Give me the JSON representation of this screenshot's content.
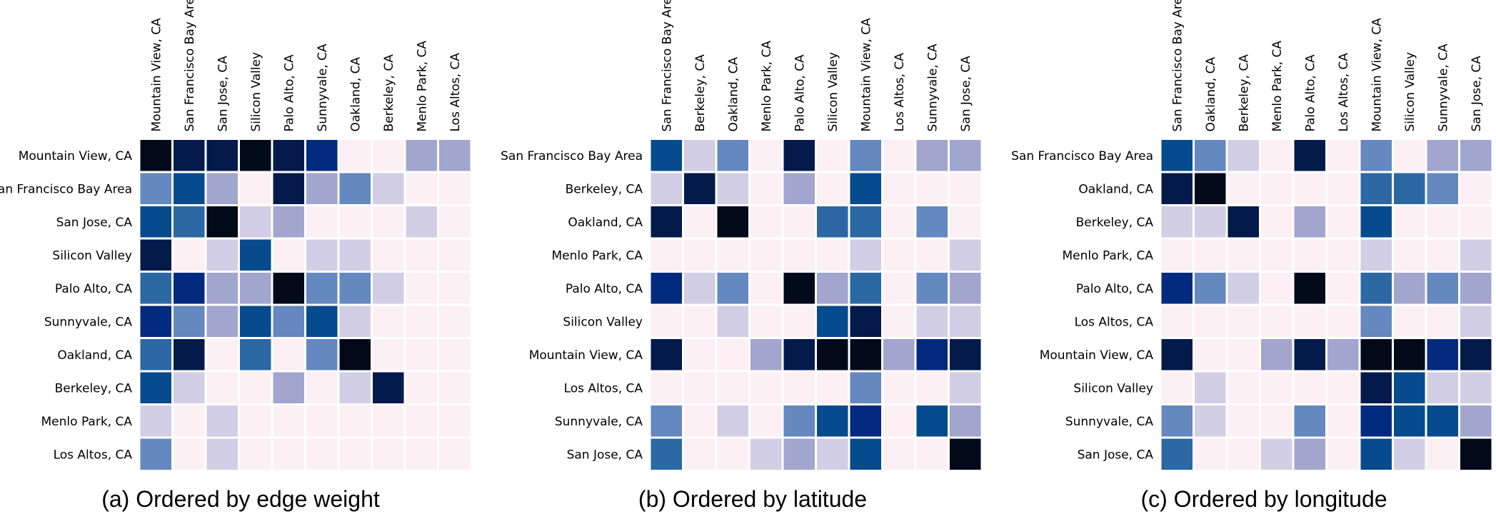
{
  "palette": [
    "#fcf0f5",
    "#d2cee6",
    "#a2a5ce",
    "#6488bf",
    "#2b68a4",
    "#054b8d",
    "#022a7e",
    "#041a4b",
    "#020a1a"
  ],
  "chart_data": [
    {
      "type": "heatmap",
      "caption": "(a)  Ordered by edge weight",
      "title": "",
      "xlabel": "",
      "ylabel": "",
      "x_labels": [
        "Mountain View, CA",
        "San Francisco Bay Area",
        "San Jose, CA",
        "Silicon Valley",
        "Palo Alto, CA",
        "Sunnyvale, CA",
        "Oakland, CA",
        "Berkeley, CA",
        "Menlo Park, CA",
        "Los Altos, CA"
      ],
      "y_labels": [
        "Mountain View, CA",
        "San Francisco Bay Area",
        "San Jose, CA",
        "Silicon Valley",
        "Palo Alto, CA",
        "Sunnyvale, CA",
        "Oakland, CA",
        "Berkeley, CA",
        "Menlo Park, CA",
        "Los Altos, CA"
      ],
      "values": [
        [
          8,
          7,
          7,
          8,
          7,
          6,
          0,
          0,
          2,
          2
        ],
        [
          3,
          5,
          2,
          0,
          7,
          2,
          3,
          1,
          0,
          0
        ],
        [
          5,
          4,
          8,
          1,
          2,
          0,
          0,
          0,
          1,
          0
        ],
        [
          7,
          0,
          1,
          5,
          0,
          1,
          1,
          0,
          0,
          0
        ],
        [
          4,
          6,
          2,
          2,
          8,
          3,
          3,
          1,
          0,
          0
        ],
        [
          6,
          3,
          2,
          5,
          3,
          5,
          1,
          0,
          0,
          0
        ],
        [
          4,
          7,
          0,
          4,
          0,
          3,
          8,
          0,
          0,
          0
        ],
        [
          5,
          1,
          0,
          0,
          2,
          0,
          1,
          7,
          0,
          0
        ],
        [
          1,
          0,
          1,
          0,
          0,
          0,
          0,
          0,
          0,
          0
        ],
        [
          3,
          0,
          1,
          0,
          0,
          0,
          0,
          0,
          0,
          0
        ]
      ]
    },
    {
      "type": "heatmap",
      "caption": "(b)  Ordered by latitude",
      "title": "",
      "xlabel": "",
      "ylabel": "",
      "x_labels": [
        "San Francisco Bay Area",
        "Berkeley, CA",
        "Oakland, CA",
        "Menlo Park, CA",
        "Palo Alto, CA",
        "Silicon Valley",
        "Mountain View, CA",
        "Los Altos, CA",
        "Sunnyvale, CA",
        "San Jose, CA"
      ],
      "y_labels": [
        "San Francisco Bay Area",
        "Berkeley, CA",
        "Oakland, CA",
        "Menlo Park, CA",
        "Palo Alto, CA",
        "Silicon Valley",
        "Mountain View, CA",
        "Los Altos, CA",
        "Sunnyvale, CA",
        "San Jose, CA"
      ],
      "values": [
        [
          5,
          1,
          3,
          0,
          7,
          0,
          3,
          0,
          2,
          2
        ],
        [
          1,
          7,
          1,
          0,
          2,
          0,
          5,
          0,
          0,
          0
        ],
        [
          7,
          0,
          8,
          0,
          0,
          4,
          4,
          0,
          3,
          0
        ],
        [
          0,
          0,
          0,
          0,
          0,
          0,
          1,
          0,
          0,
          1
        ],
        [
          6,
          1,
          3,
          0,
          8,
          2,
          4,
          0,
          3,
          2
        ],
        [
          0,
          0,
          1,
          0,
          0,
          5,
          7,
          0,
          1,
          1
        ],
        [
          7,
          0,
          0,
          2,
          7,
          8,
          8,
          2,
          6,
          7
        ],
        [
          0,
          0,
          0,
          0,
          0,
          0,
          3,
          0,
          0,
          1
        ],
        [
          3,
          0,
          1,
          0,
          3,
          5,
          6,
          0,
          5,
          2
        ],
        [
          4,
          0,
          0,
          1,
          2,
          1,
          5,
          0,
          0,
          8
        ]
      ]
    },
    {
      "type": "heatmap",
      "caption": "(c)  Ordered by longitude",
      "title": "",
      "xlabel": "",
      "ylabel": "",
      "x_labels": [
        "San Francisco Bay Area",
        "Oakland, CA",
        "Berkeley, CA",
        "Menlo Park, CA",
        "Palo Alto, CA",
        "Los Altos, CA",
        "Mountain View, CA",
        "Silicon Valley",
        "Sunnyvale, CA",
        "San Jose, CA"
      ],
      "y_labels": [
        "San Francisco Bay Area",
        "Oakland, CA",
        "Berkeley, CA",
        "Menlo Park, CA",
        "Palo Alto, CA",
        "Los Altos, CA",
        "Mountain View, CA",
        "Silicon Valley",
        "Sunnyvale, CA",
        "San Jose, CA"
      ],
      "values": [
        [
          5,
          3,
          1,
          0,
          7,
          0,
          3,
          0,
          2,
          2
        ],
        [
          7,
          8,
          0,
          0,
          0,
          0,
          4,
          4,
          3,
          0
        ],
        [
          1,
          1,
          7,
          0,
          2,
          0,
          5,
          0,
          0,
          0
        ],
        [
          0,
          0,
          0,
          0,
          0,
          0,
          1,
          0,
          0,
          1
        ],
        [
          6,
          3,
          1,
          0,
          8,
          0,
          4,
          2,
          3,
          2
        ],
        [
          0,
          0,
          0,
          0,
          0,
          0,
          3,
          0,
          0,
          1
        ],
        [
          7,
          0,
          0,
          2,
          7,
          2,
          8,
          8,
          6,
          7
        ],
        [
          0,
          1,
          0,
          0,
          0,
          0,
          7,
          5,
          1,
          1
        ],
        [
          3,
          1,
          0,
          0,
          3,
          0,
          6,
          5,
          5,
          2
        ],
        [
          4,
          0,
          0,
          1,
          2,
          0,
          5,
          1,
          0,
          8
        ]
      ]
    }
  ]
}
